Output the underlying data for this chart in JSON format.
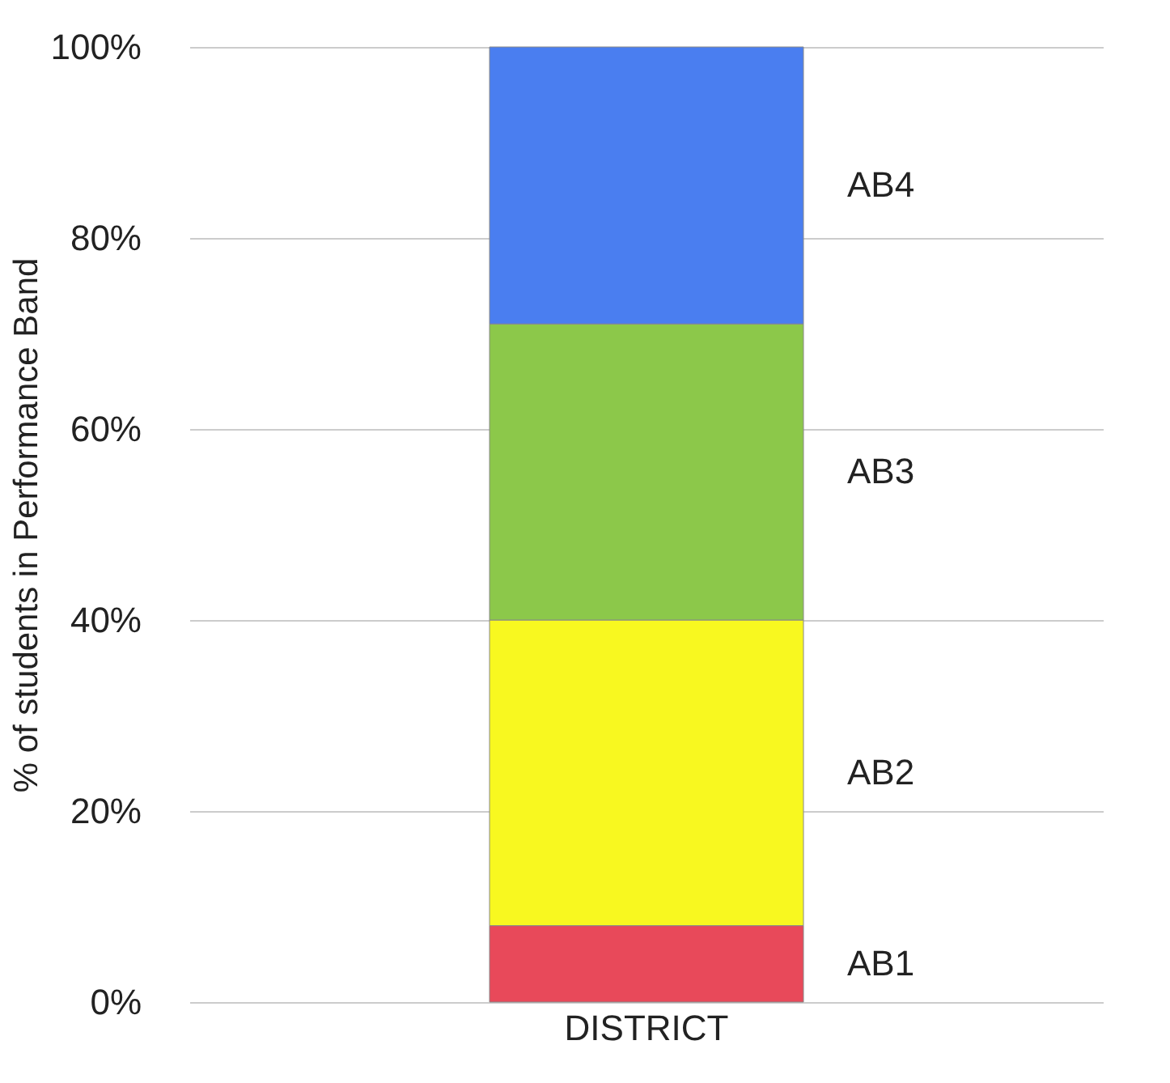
{
  "chart_data": {
    "type": "bar",
    "stacked": true,
    "ylabel": "% of students in Performance Band",
    "categories": [
      "DISTRICT"
    ],
    "series": [
      {
        "name": "AB1",
        "color": "#e8495a",
        "values": [
          8
        ]
      },
      {
        "name": "AB2",
        "color": "#f8f820",
        "values": [
          32
        ]
      },
      {
        "name": "AB3",
        "color": "#8cc84a",
        "values": [
          31
        ]
      },
      {
        "name": "AB4",
        "color": "#4a7ef0",
        "values": [
          29
        ]
      }
    ],
    "ylim": [
      0,
      100
    ],
    "yticks": [
      {
        "value": 0,
        "label": "0%"
      },
      {
        "value": 20,
        "label": "20%"
      },
      {
        "value": 40,
        "label": "40%"
      },
      {
        "value": 60,
        "label": "60%"
      },
      {
        "value": 80,
        "label": "80%"
      },
      {
        "value": 100,
        "label": "100%"
      }
    ],
    "grid": "y",
    "legend": false
  }
}
